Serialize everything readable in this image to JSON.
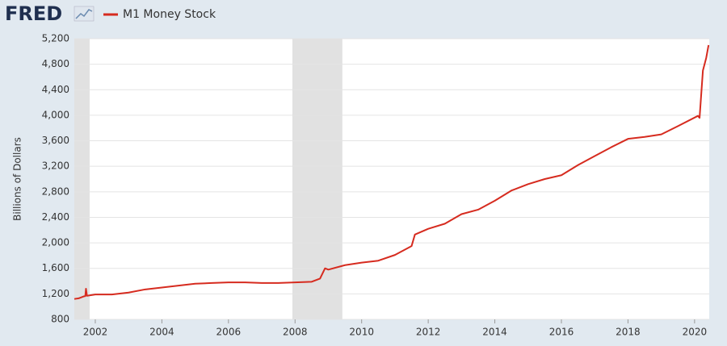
{
  "chart_data": {
    "type": "line",
    "brand": "FRED",
    "title": "M1 Money Stock",
    "ylabel": "Billions of Dollars",
    "x": [
      2001.37,
      2001.5,
      2001.65,
      2001.7,
      2001.72,
      2001.75,
      2002,
      2002.5,
      2003,
      2003.5,
      2004,
      2004.5,
      2005,
      2005.5,
      2006,
      2006.5,
      2007,
      2007.5,
      2008,
      2008.5,
      2008.75,
      2008.9,
      2009,
      2009.5,
      2010,
      2010.5,
      2011,
      2011.5,
      2011.6,
      2012,
      2012.5,
      2013,
      2013.5,
      2014,
      2014.5,
      2015,
      2015.5,
      2016,
      2016.5,
      2017,
      2017.5,
      2018,
      2018.5,
      2019,
      2019.5,
      2020.1,
      2020.15,
      2020.25,
      2020.35,
      2020.42
    ],
    "series": [
      {
        "name": "M1 Money Stock",
        "color": "#d62b1f",
        "values": [
          1120,
          1130,
          1160,
          1165,
          1280,
          1170,
          1190,
          1190,
          1220,
          1270,
          1300,
          1330,
          1360,
          1370,
          1380,
          1380,
          1370,
          1370,
          1380,
          1390,
          1440,
          1600,
          1580,
          1650,
          1690,
          1720,
          1810,
          1950,
          2130,
          2220,
          2300,
          2450,
          2520,
          2660,
          2820,
          2920,
          3000,
          3060,
          3220,
          3360,
          3500,
          3630,
          3660,
          3700,
          3830,
          3990,
          3960,
          4700,
          4900,
          5100
        ]
      }
    ],
    "recessions": [
      [
        2001.25,
        2001.83
      ],
      [
        2007.92,
        2009.42
      ]
    ],
    "xlim": [
      2001.37,
      2020.44
    ],
    "xticks": [
      2002,
      2004,
      2006,
      2008,
      2010,
      2012,
      2014,
      2016,
      2018,
      2020
    ],
    "ylim": [
      800,
      5200
    ],
    "yticks": [
      800,
      {
        "value": 1200,
        "label": "1,200"
      },
      {
        "value": 1600,
        "label": "1,600"
      },
      {
        "value": 2000,
        "label": "2,000"
      },
      {
        "value": 2400,
        "label": "2,400"
      },
      {
        "value": 2800,
        "label": "2,800"
      },
      {
        "value": 3200,
        "label": "3,200"
      },
      {
        "value": 3600,
        "label": "3,600"
      },
      {
        "value": 4000,
        "label": "4,000"
      },
      {
        "value": 4400,
        "label": "4,400"
      },
      {
        "value": 4800,
        "label": "4,800"
      },
      {
        "value": 5200,
        "label": "5,200"
      }
    ],
    "grid": true
  }
}
